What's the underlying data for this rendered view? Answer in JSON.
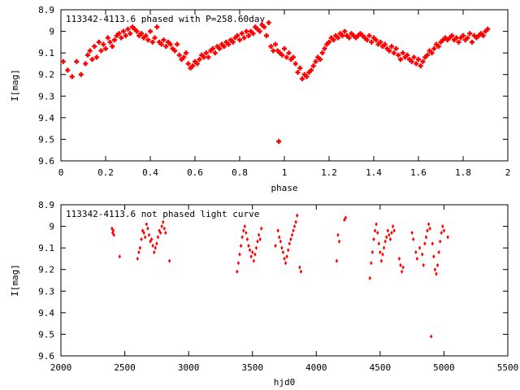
{
  "chart_data": [
    {
      "type": "scatter",
      "title": "113342-4113.6 phased with P=258.60day",
      "xlabel": "phase",
      "ylabel": "I[mag]",
      "xlim": [
        0,
        2
      ],
      "ylim": [
        8.9,
        9.6
      ],
      "y_reversed": true,
      "xticks": [
        0,
        0.2,
        0.4,
        0.6,
        0.8,
        1,
        1.2,
        1.4,
        1.6,
        1.8,
        2
      ],
      "xtick_labels": [
        "0",
        "0.2",
        "0.4",
        "0.6",
        "0.8",
        "1",
        "1.2",
        "1.4",
        "1.6",
        "1.8",
        "2"
      ],
      "yticks": [
        8.9,
        9.0,
        9.1,
        9.2,
        9.3,
        9.4,
        9.5,
        9.6
      ],
      "ytick_labels": [
        "8.9",
        "9",
        "9.1",
        "9.2",
        "9.3",
        "9.4",
        "9.5",
        "9.6"
      ],
      "marker_color": "#ff0000",
      "marker": "plus",
      "points": [
        [
          0.01,
          9.14
        ],
        [
          0.03,
          9.18
        ],
        [
          0.05,
          9.21
        ],
        [
          0.07,
          9.14
        ],
        [
          0.09,
          9.2
        ],
        [
          0.11,
          9.15
        ],
        [
          0.12,
          9.11
        ],
        [
          0.13,
          9.09
        ],
        [
          0.14,
          9.13
        ],
        [
          0.15,
          9.07
        ],
        [
          0.16,
          9.12
        ],
        [
          0.17,
          9.05
        ],
        [
          0.18,
          9.09
        ],
        [
          0.19,
          9.06
        ],
        [
          0.2,
          9.08
        ],
        [
          0.21,
          9.03
        ],
        [
          0.22,
          9.05
        ],
        [
          0.23,
          9.07
        ],
        [
          0.24,
          9.04
        ],
        [
          0.25,
          9.02
        ],
        [
          0.26,
          9.01
        ],
        [
          0.27,
          9.03
        ],
        [
          0.28,
          9.0
        ],
        [
          0.29,
          9.02
        ],
        [
          0.3,
          8.99
        ],
        [
          0.31,
          9.01
        ],
        [
          0.32,
          8.98
        ],
        [
          0.33,
          8.99
        ],
        [
          0.34,
          9.0
        ],
        [
          0.35,
          9.02
        ],
        [
          0.36,
          9.01
        ],
        [
          0.37,
          9.03
        ],
        [
          0.38,
          9.02
        ],
        [
          0.39,
          9.04
        ],
        [
          0.4,
          9.0
        ],
        [
          0.41,
          9.05
        ],
        [
          0.42,
          9.03
        ],
        [
          0.43,
          8.98
        ],
        [
          0.44,
          9.05
        ],
        [
          0.45,
          9.06
        ],
        [
          0.46,
          9.04
        ],
        [
          0.47,
          9.07
        ],
        [
          0.48,
          9.05
        ],
        [
          0.49,
          9.06
        ],
        [
          0.5,
          9.08
        ],
        [
          0.51,
          9.09
        ],
        [
          0.52,
          9.06
        ],
        [
          0.53,
          9.11
        ],
        [
          0.54,
          9.13
        ],
        [
          0.55,
          9.12
        ],
        [
          0.56,
          9.1
        ],
        [
          0.57,
          9.15
        ],
        [
          0.58,
          9.17
        ],
        [
          0.59,
          9.16
        ],
        [
          0.6,
          9.14
        ],
        [
          0.61,
          9.15
        ],
        [
          0.62,
          9.13
        ],
        [
          0.63,
          9.11
        ],
        [
          0.64,
          9.12
        ],
        [
          0.65,
          9.1
        ],
        [
          0.66,
          9.12
        ],
        [
          0.67,
          9.09
        ],
        [
          0.68,
          9.08
        ],
        [
          0.69,
          9.1
        ],
        [
          0.7,
          9.07
        ],
        [
          0.71,
          9.08
        ],
        [
          0.72,
          9.06
        ],
        [
          0.73,
          9.07
        ],
        [
          0.74,
          9.05
        ],
        [
          0.75,
          9.06
        ],
        [
          0.76,
          9.04
        ],
        [
          0.77,
          9.05
        ],
        [
          0.78,
          9.03
        ],
        [
          0.79,
          9.02
        ],
        [
          0.8,
          9.04
        ],
        [
          0.81,
          9.01
        ],
        [
          0.82,
          9.03
        ],
        [
          0.83,
          9.0
        ],
        [
          0.84,
          9.02
        ],
        [
          0.85,
          9.0
        ],
        [
          0.86,
          9.01
        ],
        [
          0.87,
          8.98
        ],
        [
          0.88,
          8.99
        ],
        [
          0.89,
          9.0
        ],
        [
          0.9,
          8.97
        ],
        [
          0.91,
          8.98
        ],
        [
          0.92,
          9.02
        ],
        [
          0.93,
          8.96
        ],
        [
          0.94,
          9.07
        ],
        [
          0.95,
          9.09
        ],
        [
          0.96,
          9.06
        ],
        [
          0.97,
          9.09
        ],
        [
          0.975,
          9.51
        ],
        [
          0.98,
          9.1
        ],
        [
          0.99,
          9.11
        ],
        [
          1.0,
          9.08
        ],
        [
          1.01,
          9.12
        ],
        [
          1.02,
          9.1
        ],
        [
          1.03,
          9.13
        ],
        [
          1.04,
          9.12
        ],
        [
          1.05,
          9.15
        ],
        [
          1.06,
          9.19
        ],
        [
          1.07,
          9.17
        ],
        [
          1.08,
          9.22
        ],
        [
          1.09,
          9.2
        ],
        [
          1.1,
          9.21
        ],
        [
          1.11,
          9.19
        ],
        [
          1.12,
          9.18
        ],
        [
          1.13,
          9.16
        ],
        [
          1.14,
          9.14
        ],
        [
          1.15,
          9.12
        ],
        [
          1.16,
          9.13
        ],
        [
          1.17,
          9.1
        ],
        [
          1.18,
          9.08
        ],
        [
          1.19,
          9.06
        ],
        [
          1.2,
          9.05
        ],
        [
          1.21,
          9.03
        ],
        [
          1.22,
          9.04
        ],
        [
          1.23,
          9.02
        ],
        [
          1.24,
          9.03
        ],
        [
          1.25,
          9.01
        ],
        [
          1.26,
          9.02
        ],
        [
          1.27,
          9.0
        ],
        [
          1.28,
          9.02
        ],
        [
          1.29,
          9.03
        ],
        [
          1.3,
          9.01
        ],
        [
          1.31,
          9.02
        ],
        [
          1.32,
          9.03
        ],
        [
          1.33,
          9.02
        ],
        [
          1.34,
          9.01
        ],
        [
          1.35,
          9.02
        ],
        [
          1.36,
          9.03
        ],
        [
          1.37,
          9.04
        ],
        [
          1.38,
          9.02
        ],
        [
          1.39,
          9.05
        ],
        [
          1.4,
          9.03
        ],
        [
          1.41,
          9.04
        ],
        [
          1.42,
          9.06
        ],
        [
          1.43,
          9.05
        ],
        [
          1.44,
          9.07
        ],
        [
          1.45,
          9.06
        ],
        [
          1.46,
          9.08
        ],
        [
          1.47,
          9.09
        ],
        [
          1.48,
          9.07
        ],
        [
          1.49,
          9.1
        ],
        [
          1.5,
          9.08
        ],
        [
          1.51,
          9.11
        ],
        [
          1.52,
          9.13
        ],
        [
          1.53,
          9.1
        ],
        [
          1.54,
          9.12
        ],
        [
          1.55,
          9.11
        ],
        [
          1.56,
          9.13
        ],
        [
          1.57,
          9.14
        ],
        [
          1.58,
          9.12
        ],
        [
          1.59,
          9.15
        ],
        [
          1.6,
          9.13
        ],
        [
          1.61,
          9.16
        ],
        [
          1.62,
          9.14
        ],
        [
          1.63,
          9.12
        ],
        [
          1.64,
          9.11
        ],
        [
          1.65,
          9.09
        ],
        [
          1.66,
          9.1
        ],
        [
          1.67,
          9.08
        ],
        [
          1.68,
          9.06
        ],
        [
          1.69,
          9.07
        ],
        [
          1.7,
          9.05
        ],
        [
          1.71,
          9.04
        ],
        [
          1.72,
          9.03
        ],
        [
          1.73,
          9.04
        ],
        [
          1.74,
          9.03
        ],
        [
          1.75,
          9.02
        ],
        [
          1.76,
          9.04
        ],
        [
          1.77,
          9.03
        ],
        [
          1.78,
          9.05
        ],
        [
          1.79,
          9.03
        ],
        [
          1.8,
          9.02
        ],
        [
          1.81,
          9.04
        ],
        [
          1.82,
          9.03
        ],
        [
          1.83,
          9.01
        ],
        [
          1.84,
          9.05
        ],
        [
          1.85,
          9.02
        ],
        [
          1.86,
          9.03
        ],
        [
          1.87,
          9.02
        ],
        [
          1.88,
          9.01
        ],
        [
          1.89,
          9.02
        ],
        [
          1.9,
          9.0
        ],
        [
          1.91,
          8.99
        ]
      ]
    },
    {
      "type": "scatter",
      "title": "113342-4113.6 not phased light curve",
      "xlabel": "hjd0",
      "ylabel": "I[mag]",
      "xlim": [
        2000,
        5500
      ],
      "ylim": [
        8.9,
        9.6
      ],
      "y_reversed": true,
      "xticks": [
        2000,
        2500,
        3000,
        3500,
        4000,
        4500,
        5000,
        5500
      ],
      "xtick_labels": [
        "2000",
        "2500",
        "3000",
        "3500",
        "4000",
        "4500",
        "5000",
        "5500"
      ],
      "yticks": [
        8.9,
        9.0,
        9.1,
        9.2,
        9.3,
        9.4,
        9.5,
        9.6
      ],
      "ytick_labels": [
        "8.9",
        "9",
        "9.1",
        "9.2",
        "9.3",
        "9.4",
        "9.5",
        "9.6"
      ],
      "marker_color": "#ff0000",
      "marker": "diamond",
      "points": [
        [
          2400,
          9.01
        ],
        [
          2405,
          9.03
        ],
        [
          2410,
          9.02
        ],
        [
          2415,
          9.04
        ],
        [
          2460,
          9.14
        ],
        [
          2600,
          9.15
        ],
        [
          2610,
          9.12
        ],
        [
          2620,
          9.1
        ],
        [
          2630,
          9.06
        ],
        [
          2640,
          9.02
        ],
        [
          2650,
          9.03
        ],
        [
          2660,
          9.05
        ],
        [
          2670,
          8.99
        ],
        [
          2680,
          9.01
        ],
        [
          2690,
          9.04
        ],
        [
          2700,
          9.07
        ],
        [
          2710,
          9.06
        ],
        [
          2720,
          9.09
        ],
        [
          2730,
          9.12
        ],
        [
          2740,
          9.1
        ],
        [
          2750,
          9.08
        ],
        [
          2760,
          9.05
        ],
        [
          2770,
          9.02
        ],
        [
          2780,
          9.03
        ],
        [
          2790,
          9.0
        ],
        [
          2800,
          8.98
        ],
        [
          2810,
          9.01
        ],
        [
          2820,
          9.03
        ],
        [
          2850,
          9.16
        ],
        [
          3380,
          9.21
        ],
        [
          3390,
          9.17
        ],
        [
          3400,
          9.13
        ],
        [
          3410,
          9.09
        ],
        [
          3420,
          9.05
        ],
        [
          3430,
          9.02
        ],
        [
          3440,
          9.0
        ],
        [
          3450,
          9.03
        ],
        [
          3460,
          9.06
        ],
        [
          3470,
          9.09
        ],
        [
          3480,
          9.11
        ],
        [
          3490,
          9.14
        ],
        [
          3500,
          9.12
        ],
        [
          3510,
          9.16
        ],
        [
          3520,
          9.13
        ],
        [
          3530,
          9.1
        ],
        [
          3540,
          9.07
        ],
        [
          3550,
          9.04
        ],
        [
          3560,
          9.06
        ],
        [
          3570,
          9.01
        ],
        [
          3680,
          9.09
        ],
        [
          3700,
          9.02
        ],
        [
          3710,
          9.05
        ],
        [
          3720,
          9.07
        ],
        [
          3730,
          9.1
        ],
        [
          3740,
          9.12
        ],
        [
          3750,
          9.15
        ],
        [
          3760,
          9.17
        ],
        [
          3770,
          9.14
        ],
        [
          3780,
          9.11
        ],
        [
          3790,
          9.08
        ],
        [
          3800,
          9.06
        ],
        [
          3810,
          9.04
        ],
        [
          3820,
          9.02
        ],
        [
          3830,
          9.0
        ],
        [
          3840,
          8.98
        ],
        [
          3850,
          8.95
        ],
        [
          3870,
          9.19
        ],
        [
          3880,
          9.21
        ],
        [
          4160,
          9.16
        ],
        [
          4170,
          9.04
        ],
        [
          4180,
          9.07
        ],
        [
          4220,
          8.97
        ],
        [
          4230,
          8.96
        ],
        [
          4420,
          9.24
        ],
        [
          4430,
          9.17
        ],
        [
          4440,
          9.12
        ],
        [
          4450,
          9.06
        ],
        [
          4460,
          9.02
        ],
        [
          4470,
          8.99
        ],
        [
          4480,
          9.03
        ],
        [
          4490,
          9.08
        ],
        [
          4500,
          9.12
        ],
        [
          4510,
          9.16
        ],
        [
          4520,
          9.13
        ],
        [
          4530,
          9.1
        ],
        [
          4540,
          9.07
        ],
        [
          4550,
          9.05
        ],
        [
          4560,
          9.02
        ],
        [
          4570,
          9.04
        ],
        [
          4580,
          9.06
        ],
        [
          4590,
          9.03
        ],
        [
          4600,
          9.0
        ],
        [
          4610,
          9.02
        ],
        [
          4650,
          9.15
        ],
        [
          4660,
          9.18
        ],
        [
          4670,
          9.21
        ],
        [
          4680,
          9.19
        ],
        [
          4750,
          9.03
        ],
        [
          4760,
          9.06
        ],
        [
          4780,
          9.12
        ],
        [
          4790,
          9.15
        ],
        [
          4810,
          9.1
        ],
        [
          4830,
          9.13
        ],
        [
          4840,
          9.18
        ],
        [
          4850,
          9.08
        ],
        [
          4860,
          9.05
        ],
        [
          4870,
          9.02
        ],
        [
          4880,
          8.99
        ],
        [
          4890,
          9.01
        ],
        [
          4900,
          9.51
        ],
        [
          4910,
          9.08
        ],
        [
          4920,
          9.14
        ],
        [
          4930,
          9.2
        ],
        [
          4940,
          9.22
        ],
        [
          4950,
          9.18
        ],
        [
          4960,
          9.12
        ],
        [
          4970,
          9.07
        ],
        [
          4980,
          9.03
        ],
        [
          4990,
          9.0
        ],
        [
          5000,
          9.02
        ],
        [
          5030,
          9.05
        ]
      ]
    }
  ]
}
